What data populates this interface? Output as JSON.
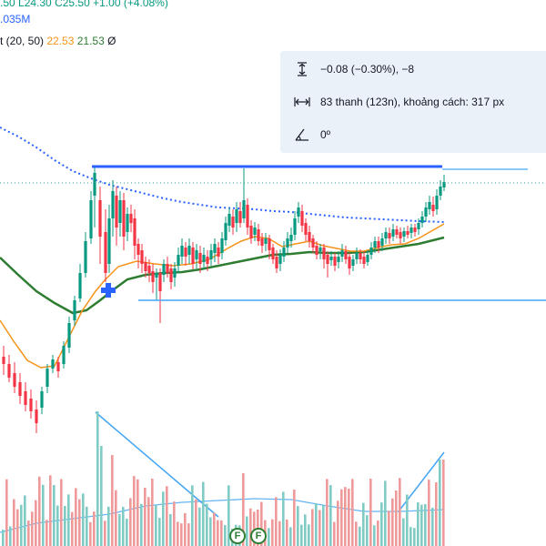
{
  "legend": {
    "ohlc_open": ".50",
    "ohlc_low": "L24.30",
    "ohlc_close": "C25.50",
    "ohlc_change": "+1.00 (+4.08%)",
    "volume": ".035M",
    "ma_label": "t (20, 50)",
    "ma_fast_value": "22.53",
    "ma_slow_value": "21.53",
    "ma_symbol": "Ø"
  },
  "measure_box": {
    "price_range": "−0.08 (−0.30%), −8",
    "bars_distance": "83 thanh (123n), khoảng cách: 317 px",
    "angle": "0º",
    "icons": [
      "vertical-range-icon",
      "horizontal-range-icon",
      "angle-icon"
    ]
  },
  "earnings_badges": [
    "F",
    "F"
  ],
  "colors": {
    "up": "#089981",
    "down": "#f23645",
    "ma_fast": "#f7931a",
    "ma_slow": "#2e7d32",
    "dotted_ma": "#2962ff",
    "drawing_line": "#2962ff",
    "trend_line": "#42a5f5",
    "measure_bg": "#eaf1f8"
  },
  "drawings": {
    "resistance_line": "horizontal",
    "support_line": "horizontal",
    "volume_trend_lines": 2
  }
}
